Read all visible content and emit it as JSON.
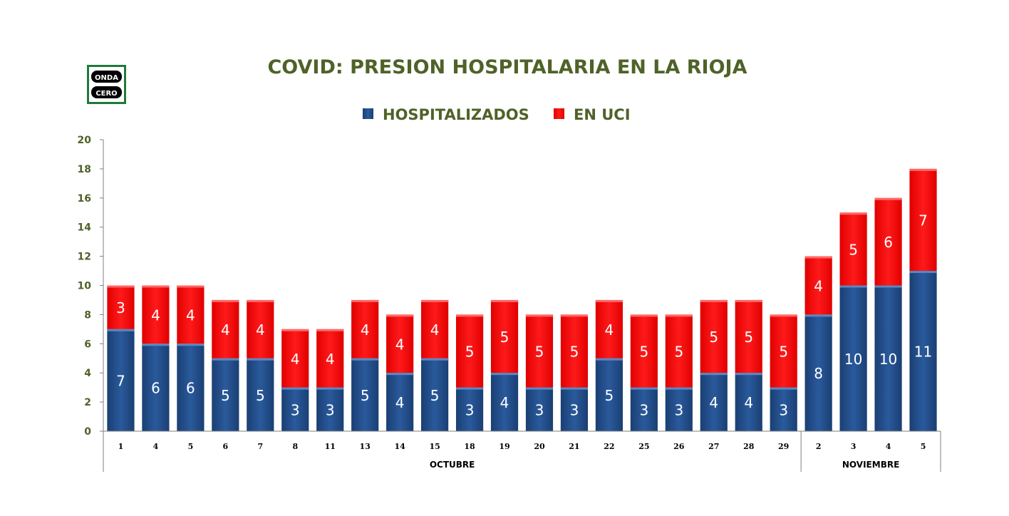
{
  "logo": {
    "line1": "ONDA",
    "line2": "CERO"
  },
  "colors": {
    "hospitalizados": "#1f4e8c",
    "en_uci": "#ff0000",
    "title": "#4f6228"
  },
  "chart_data": {
    "type": "bar",
    "stacked": true,
    "title": "COVID: PRESION HOSPITALARIA EN LA RIOJA",
    "legend": "top",
    "ylim": [
      0,
      20
    ],
    "yticks": [
      0,
      2,
      4,
      6,
      8,
      10,
      12,
      14,
      16,
      18,
      20
    ],
    "categories": [
      "1",
      "4",
      "5",
      "6",
      "7",
      "8",
      "11",
      "13",
      "14",
      "15",
      "18",
      "19",
      "20",
      "21",
      "22",
      "25",
      "26",
      "27",
      "28",
      "29",
      "2",
      "3",
      "4",
      "5"
    ],
    "groups": [
      {
        "label": "OCTUBRE",
        "count": 20
      },
      {
        "label": "NOVIEMBRE",
        "count": 4
      }
    ],
    "series": [
      {
        "name": "HOSPITALIZADOS",
        "values": [
          7,
          6,
          6,
          5,
          5,
          3,
          3,
          5,
          4,
          5,
          3,
          4,
          3,
          3,
          5,
          3,
          3,
          4,
          4,
          3,
          8,
          10,
          10,
          11
        ]
      },
      {
        "name": "EN UCI",
        "values": [
          3,
          4,
          4,
          4,
          4,
          4,
          4,
          4,
          4,
          4,
          5,
          5,
          5,
          5,
          4,
          5,
          5,
          5,
          5,
          5,
          4,
          5,
          6,
          7
        ]
      }
    ]
  }
}
